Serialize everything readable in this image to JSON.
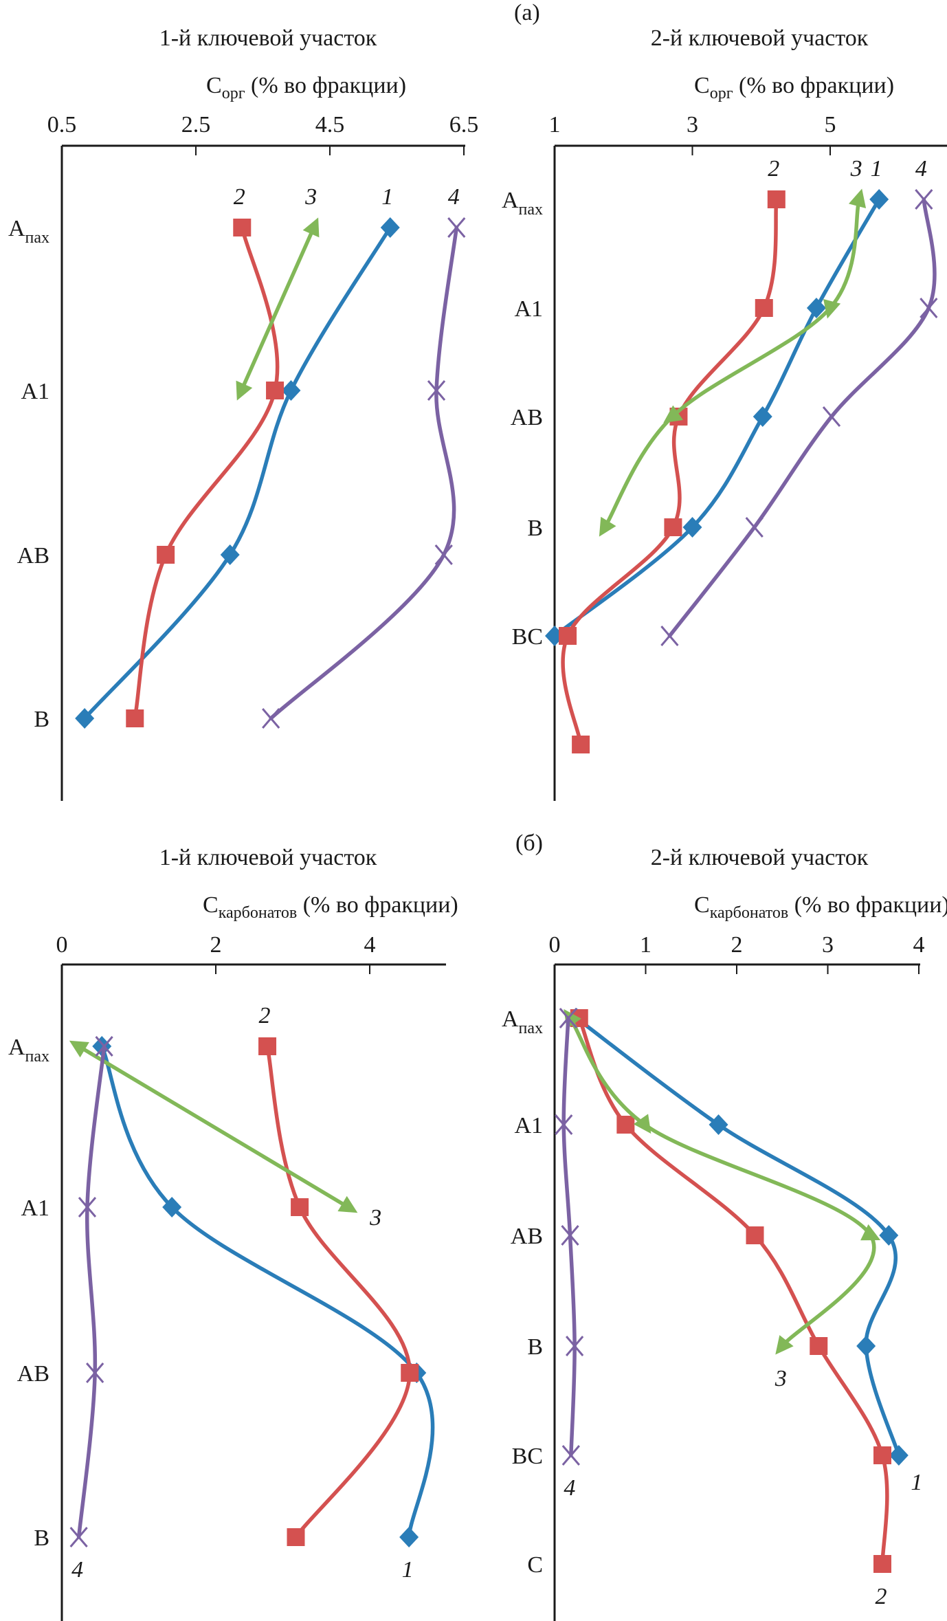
{
  "figure": {
    "panel_a_label": "(а)",
    "panel_b_label": "(б)"
  },
  "colors": {
    "series_1": "#2a7db8",
    "series_2": "#d45150",
    "series_3": "#82b858",
    "series_4": "#7b62a3",
    "axis": "#1a1a1a"
  },
  "chart_data": [
    {
      "id": "a1",
      "panel": "(а)",
      "type": "line",
      "orientation": "depth-profile (categories on vertical axis, values on top horizontal axis)",
      "title": "1-й ключевой участок",
      "xlabel": {
        "main": "C",
        "sub": "орг",
        "rest": " (% во фракции)"
      },
      "xlim": [
        0.5,
        6.5
      ],
      "xticks": [
        "0.5",
        "2.5",
        "4.5",
        "6.5"
      ],
      "xtick_values": [
        0.5,
        2.5,
        4.5,
        6.5
      ],
      "categories": [
        {
          "main": "A",
          "sub": "пах"
        },
        {
          "main": "A1",
          "sub": ""
        },
        {
          "main": "AB",
          "sub": ""
        },
        {
          "main": "B",
          "sub": ""
        }
      ],
      "grid": false,
      "series": [
        {
          "name": "1",
          "marker": "diamond",
          "color_key": "series_1",
          "values": [
            5.4,
            3.92,
            3.01,
            0.84
          ],
          "label_at": "above-first"
        },
        {
          "name": "2",
          "marker": "square",
          "color_key": "series_2",
          "values": [
            3.19,
            3.68,
            2.05,
            1.59
          ],
          "label_at": "above-first"
        },
        {
          "name": "3",
          "marker": "triangle",
          "color_key": "series_3",
          "values": [
            4.26,
            3.18,
            null,
            null
          ],
          "label_at": "above-first"
        },
        {
          "name": "4",
          "marker": "x",
          "color_key": "series_4",
          "values": [
            6.39,
            6.09,
            6.2,
            3.62
          ],
          "label_at": "above-first"
        }
      ]
    },
    {
      "id": "a2",
      "panel": "(а)",
      "type": "line",
      "orientation": "depth-profile (categories on vertical axis, values on top horizontal axis)",
      "title": "2-й ключевой участок",
      "xlabel": {
        "main": "C",
        "sub": "орг",
        "rest": " (% во фракции)"
      },
      "xlim": [
        1,
        7
      ],
      "xticks": [
        "1",
        "3",
        "5"
      ],
      "xtick_values": [
        1,
        3,
        5
      ],
      "categories": [
        {
          "main": "A",
          "sub": "пах"
        },
        {
          "main": "A1",
          "sub": ""
        },
        {
          "main": "AB",
          "sub": ""
        },
        {
          "main": "B",
          "sub": ""
        },
        {
          "main": "BC",
          "sub": ""
        },
        {
          "main": "",
          "sub": ""
        }
      ],
      "grid": false,
      "series": [
        {
          "name": "1",
          "marker": "diamond",
          "color_key": "series_1",
          "values": [
            5.71,
            4.8,
            4.02,
            3.0,
            1.0,
            null
          ],
          "label_at": "above-first"
        },
        {
          "name": "2",
          "marker": "square",
          "color_key": "series_2",
          "values": [
            4.22,
            4.04,
            2.8,
            2.72,
            1.19,
            1.38
          ],
          "label_at": "above-first"
        },
        {
          "name": "3",
          "marker": "triangle",
          "color_key": "series_3",
          "values": [
            5.42,
            5.0,
            2.71,
            1.73,
            null,
            null
          ],
          "label_at": "above-first"
        },
        {
          "name": "4",
          "marker": "x",
          "color_key": "series_4",
          "values": [
            6.36,
            6.43,
            5.02,
            3.9,
            2.67,
            null
          ],
          "label_at": "above-first"
        }
      ]
    },
    {
      "id": "b1",
      "panel": "(б)",
      "type": "line",
      "orientation": "depth-profile (categories on vertical axis, values on top horizontal axis)",
      "title": "1-й ключевой участок",
      "xlabel": {
        "main": "C",
        "sub": "карбонатов",
        "rest": " (% во фракции)"
      },
      "xlim": [
        0,
        5
      ],
      "xticks": [
        "0",
        "2",
        "4"
      ],
      "xtick_values": [
        0,
        2,
        4
      ],
      "categories": [
        {
          "main": "A",
          "sub": "пах"
        },
        {
          "main": "A1",
          "sub": ""
        },
        {
          "main": "AB",
          "sub": ""
        },
        {
          "main": "B",
          "sub": ""
        }
      ],
      "grid": false,
      "series": [
        {
          "name": "1",
          "marker": "diamond",
          "color_key": "series_1",
          "values": [
            0.52,
            1.43,
            4.61,
            4.51
          ],
          "label_at": "below-last"
        },
        {
          "name": "2",
          "marker": "square",
          "color_key": "series_2",
          "values": [
            2.67,
            3.09,
            4.52,
            3.04
          ],
          "label_at": "above-first"
        },
        {
          "name": "3",
          "marker": "triangle",
          "color_key": "series_3",
          "values": [
            0.22,
            3.72,
            null,
            null
          ],
          "label_at": "right-last"
        },
        {
          "name": "4",
          "marker": "x",
          "color_key": "series_4",
          "values": [
            0.55,
            0.33,
            0.43,
            0.22
          ],
          "label_at": "below-last"
        }
      ]
    },
    {
      "id": "b2",
      "panel": "(б)",
      "type": "line",
      "orientation": "depth-profile (categories on vertical axis, values on top horizontal axis)",
      "title": "2-й ключевой участок",
      "xlabel": {
        "main": "C",
        "sub": "карбонатов",
        "rest": " (% во фракции)"
      },
      "xlim": [
        0,
        4
      ],
      "xticks": [
        "0",
        "1",
        "2",
        "3",
        "4"
      ],
      "xtick_values": [
        0,
        1,
        2,
        3,
        4
      ],
      "categories": [
        {
          "main": "A",
          "sub": "пах"
        },
        {
          "main": "A1",
          "sub": ""
        },
        {
          "main": "AB",
          "sub": ""
        },
        {
          "main": "B",
          "sub": ""
        },
        {
          "main": "BC",
          "sub": ""
        },
        {
          "main": "C",
          "sub": ""
        }
      ],
      "grid": false,
      "series": [
        {
          "name": "1",
          "marker": "diamond",
          "color_key": "series_1",
          "values": [
            0.24,
            1.8,
            3.67,
            3.42,
            3.78,
            null
          ],
          "label_at": "below-right-last"
        },
        {
          "name": "2",
          "marker": "square",
          "color_key": "series_2",
          "values": [
            0.27,
            0.78,
            2.2,
            2.9,
            3.6,
            3.6
          ],
          "label_at": "below-last"
        },
        {
          "name": "3",
          "marker": "triangle",
          "color_key": "series_3",
          "values": [
            0.17,
            0.99,
            3.47,
            2.5,
            null,
            null
          ],
          "label_at": "below-last"
        },
        {
          "name": "4",
          "marker": "x",
          "color_key": "series_4",
          "values": [
            0.15,
            0.1,
            0.17,
            0.22,
            0.18,
            null
          ],
          "label_at": "below-last"
        }
      ]
    }
  ]
}
